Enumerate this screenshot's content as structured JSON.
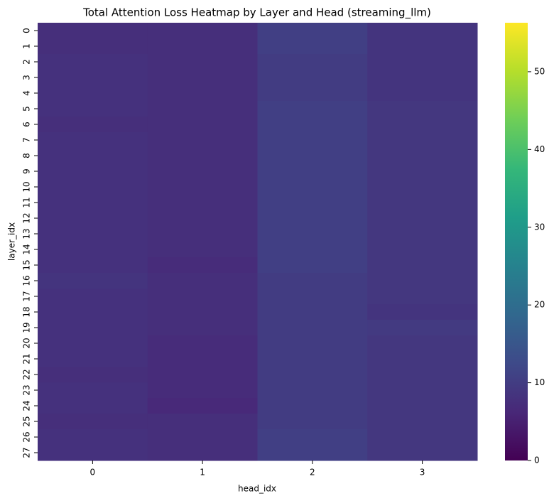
{
  "chart_data": {
    "type": "heatmap",
    "title": "Total Attention Loss Heatmap by Layer and Head (streaming_llm)",
    "x_label": "head_idx",
    "y_label": "layer_idx",
    "x_categories": [
      "0",
      "1",
      "2",
      "3"
    ],
    "y_categories": [
      "0",
      "1",
      "2",
      "3",
      "4",
      "5",
      "6",
      "7",
      "8",
      "9",
      "10",
      "11",
      "12",
      "13",
      "14",
      "15",
      "16",
      "17",
      "18",
      "19",
      "20",
      "21",
      "22",
      "23",
      "24",
      "25",
      "26",
      "27"
    ],
    "values": [
      [
        7.5,
        7.5,
        10.5,
        8.5
      ],
      [
        7.5,
        7.5,
        10.5,
        8.5
      ],
      [
        8,
        7.5,
        10,
        8.5
      ],
      [
        8,
        7.5,
        10,
        8.5
      ],
      [
        8,
        7.5,
        10,
        8.5
      ],
      [
        8,
        7.5,
        10.5,
        9
      ],
      [
        7.5,
        7.5,
        10.5,
        9
      ],
      [
        8,
        7.5,
        10.5,
        9
      ],
      [
        8,
        7.5,
        10.5,
        9
      ],
      [
        8,
        7.5,
        10.5,
        9
      ],
      [
        8,
        7.5,
        10.5,
        9
      ],
      [
        8,
        7.5,
        10.5,
        9
      ],
      [
        8,
        7.5,
        10.5,
        9
      ],
      [
        8,
        7.5,
        10.5,
        9
      ],
      [
        8,
        7.5,
        10.5,
        9
      ],
      [
        8,
        7,
        10.5,
        9
      ],
      [
        8.5,
        7.5,
        10,
        9
      ],
      [
        8,
        7.5,
        10,
        9
      ],
      [
        8,
        7.5,
        10,
        8.5
      ],
      [
        8,
        7.5,
        10,
        9.5
      ],
      [
        8,
        7,
        10,
        9
      ],
      [
        8,
        7,
        10,
        9
      ],
      [
        7.5,
        7,
        10,
        9
      ],
      [
        8,
        7,
        10,
        9
      ],
      [
        8,
        6.5,
        10,
        9
      ],
      [
        7.5,
        7.5,
        10,
        9
      ],
      [
        8,
        7.5,
        10.5,
        9
      ],
      [
        8,
        7.5,
        10.5,
        9
      ]
    ],
    "colormap": "viridis",
    "clim": [
      0,
      56.3
    ],
    "cticks": [
      0,
      10,
      20,
      30,
      40,
      50
    ]
  }
}
